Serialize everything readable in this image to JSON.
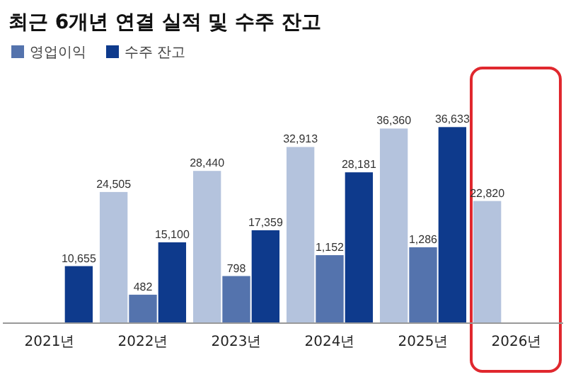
{
  "chart_data": {
    "type": "bar",
    "title": "최근 6개년 연결 실적 및 수주 잔고",
    "categories": [
      "2021년",
      "2022년",
      "2023년",
      "2024년",
      "2025년",
      "2026년"
    ],
    "series": [
      {
        "color": "#b4c3dd",
        "values": [
          null,
          24505,
          28440,
          32913,
          36360,
          22820
        ],
        "value_labels": [
          null,
          "24,505",
          "28,440",
          "32,913",
          "36,360",
          "22,820"
        ]
      },
      {
        "name": "영업이익",
        "color": "#5473ad",
        "axis": "y2",
        "values": [
          null,
          482,
          798,
          1152,
          1286,
          null
        ],
        "value_labels": [
          null,
          "482",
          "798",
          "1,152",
          "1,286",
          null
        ]
      },
      {
        "name": "수주 잔고",
        "color": "#0e3a8c",
        "values": [
          10655,
          15100,
          17359,
          28181,
          36633,
          null
        ],
        "value_labels": [
          "10,655",
          "15,100",
          "17,359",
          "28,181",
          "36,633",
          null
        ]
      }
    ],
    "tick_labels": false,
    "legend": "top left"
  }
}
